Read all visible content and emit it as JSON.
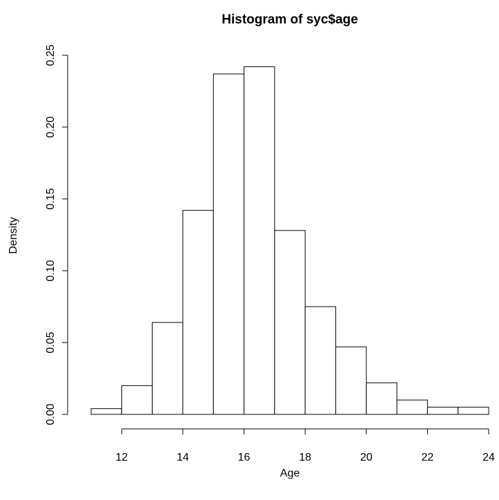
{
  "chart_data": {
    "type": "bar",
    "title": "Histogram of syc$age",
    "xlabel": "Age",
    "ylabel": "Density",
    "bins": [
      {
        "start": 11,
        "end": 12,
        "density": 0.004
      },
      {
        "start": 12,
        "end": 13,
        "density": 0.02
      },
      {
        "start": 13,
        "end": 14,
        "density": 0.064
      },
      {
        "start": 14,
        "end": 15,
        "density": 0.142
      },
      {
        "start": 15,
        "end": 16,
        "density": 0.237
      },
      {
        "start": 16,
        "end": 17,
        "density": 0.242
      },
      {
        "start": 17,
        "end": 18,
        "density": 0.128
      },
      {
        "start": 18,
        "end": 19,
        "density": 0.075
      },
      {
        "start": 19,
        "end": 20,
        "density": 0.047
      },
      {
        "start": 20,
        "end": 21,
        "density": 0.022
      },
      {
        "start": 21,
        "end": 22,
        "density": 0.01
      },
      {
        "start": 22,
        "end": 23,
        "density": 0.005
      },
      {
        "start": 23,
        "end": 24,
        "density": 0.005
      }
    ],
    "xlim": [
      11,
      24
    ],
    "ylim": [
      0,
      0.25
    ],
    "xticks": [
      12,
      14,
      16,
      18,
      20,
      22,
      24
    ],
    "xtick_labels": [
      "12",
      "14",
      "16",
      "18",
      "20",
      "22",
      "24"
    ],
    "yticks": [
      0,
      0.05,
      0.1,
      0.15,
      0.2,
      0.25
    ],
    "ytick_labels": [
      "0.00",
      "0.05",
      "0.10",
      "0.15",
      "0.20",
      "0.25"
    ],
    "grid": false,
    "colors": {
      "bar_fill": "#ffffff",
      "bar_stroke": "#000000"
    }
  }
}
